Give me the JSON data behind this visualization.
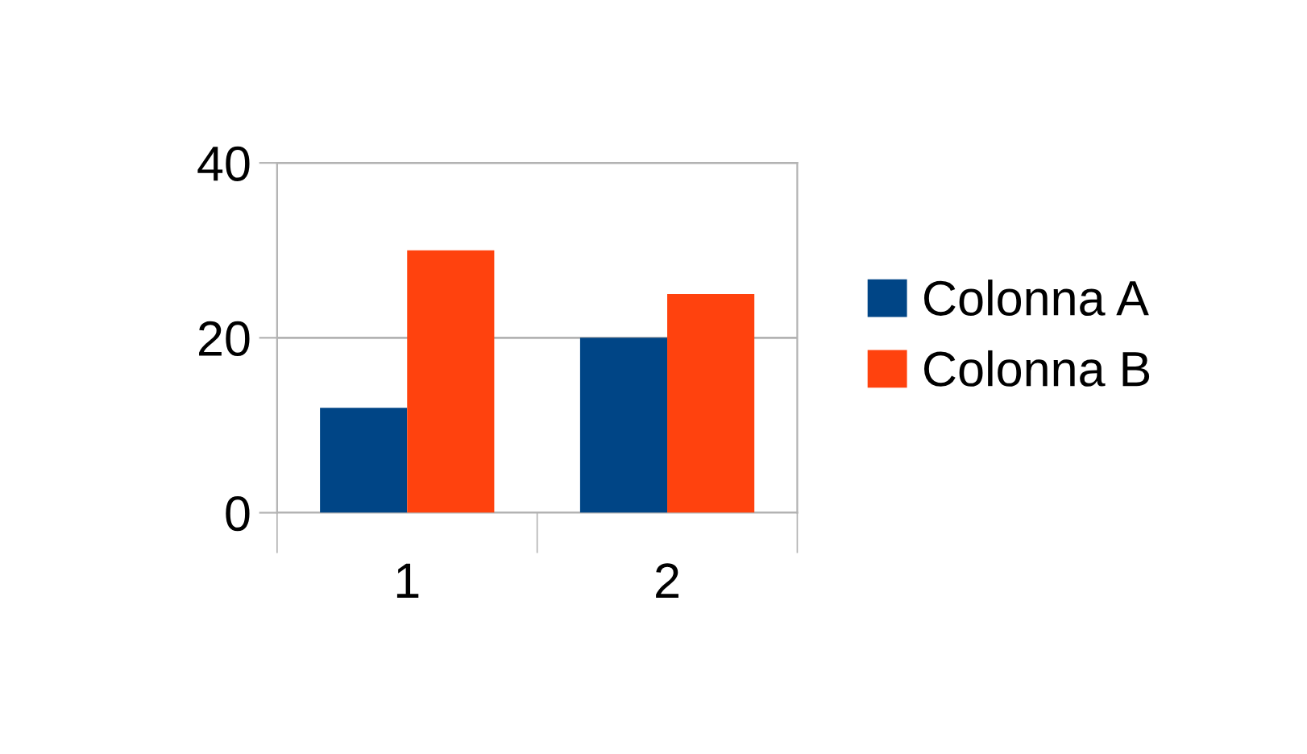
{
  "chart_data": {
    "type": "bar",
    "categories": [
      "1",
      "2"
    ],
    "series": [
      {
        "name": "Colonna A",
        "color": "#004586",
        "values": [
          12,
          20
        ]
      },
      {
        "name": "Colonna B",
        "color": "#ff420e",
        "values": [
          30,
          25
        ]
      }
    ],
    "ylim": [
      0,
      40
    ],
    "yticks": [
      0,
      20,
      40
    ],
    "grid": "y",
    "legend": "right"
  }
}
